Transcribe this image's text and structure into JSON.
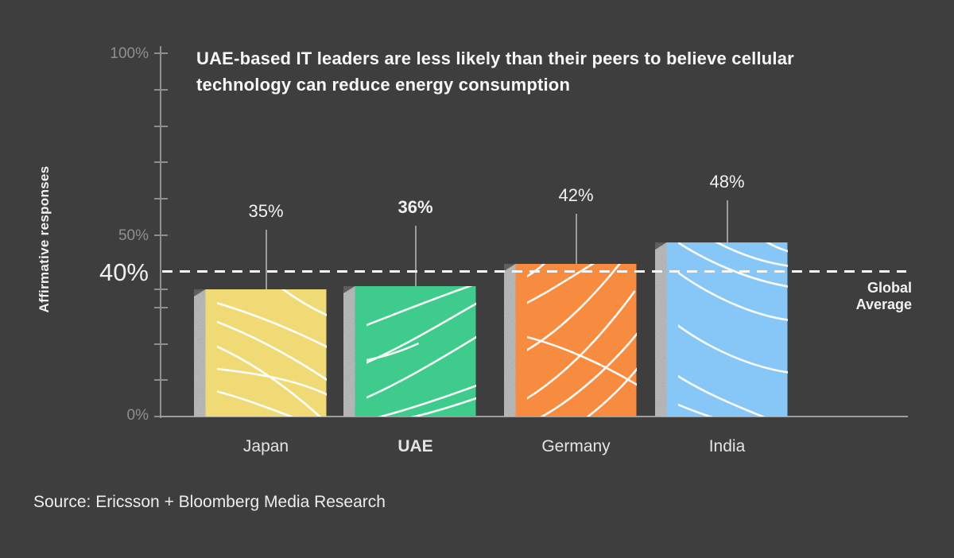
{
  "title": {
    "line1": "UAE-based IT leaders are less likely than their peers to believe cellular",
    "line2": "technology can reduce energy consumption"
  },
  "y_axis": {
    "label": "Affirmative responses",
    "tick_labels": {
      "t100": "100%",
      "t50": "50%",
      "t0": "0%"
    },
    "highlight_label": "40%"
  },
  "global_average": {
    "line1": "Global",
    "line2": "Average"
  },
  "source": "Source: Ericsson + Bloomberg Media Research",
  "colors": {
    "background": "#3E3E3E",
    "axis": "#8F8F8F",
    "tick_text": "#8F8F8F",
    "dashed_line": "#F5F5F5",
    "strip_concrete": "#B2B2B2",
    "pattern_lines": "#FFFFFF"
  },
  "chart_data": {
    "type": "bar",
    "title": "UAE-based IT leaders are less likely than their peers to believe cellular technology can reduce energy consumption",
    "categories": [
      "Japan",
      "UAE",
      "Germany",
      "India"
    ],
    "values": [
      35,
      36,
      42,
      48
    ],
    "value_labels": [
      "35%",
      "36%",
      "42%",
      "48%"
    ],
    "bar_colors": [
      "#F0DA76",
      "#3FCB8B",
      "#F78B3F",
      "#87C7F7"
    ],
    "highlighted_category": "UAE",
    "xlabel": "",
    "ylabel": "Affirmative responses",
    "ylim": [
      0,
      100
    ],
    "y_ticks_labeled": [
      0,
      50,
      100
    ],
    "grid": false,
    "legend": false,
    "reference_line": {
      "value": 40,
      "label": "Global Average",
      "style": "dashed"
    },
    "source": "Source: Ericsson + Bloomberg Media Research"
  }
}
